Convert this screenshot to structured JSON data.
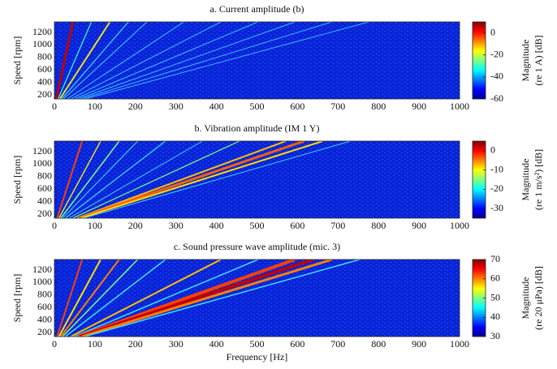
{
  "chart_data": [
    {
      "type": "heatmap",
      "title": "a. Current amplitude (b)",
      "ylabel": "Speed [rpm]",
      "xlim": [
        0,
        1000
      ],
      "xticks": [
        0,
        100,
        200,
        300,
        400,
        500,
        600,
        700,
        800,
        900,
        1000
      ],
      "ylim": [
        135,
        1370
      ],
      "yticks": [
        200,
        400,
        600,
        800,
        1000,
        1200
      ],
      "colorbar": {
        "clim": [
          -60,
          10
        ],
        "ticks": [
          0,
          -20,
          -40,
          -60
        ],
        "label": [
          "Magnitude",
          "(re 1 A) [dB]"
        ]
      }
    },
    {
      "type": "heatmap",
      "title": "b. Vibration amplitude (IM 1 Y)",
      "ylabel": "Speed [rpm]",
      "xlim": [
        0,
        1000
      ],
      "xticks": [
        0,
        100,
        200,
        300,
        400,
        500,
        600,
        700,
        800,
        900,
        1000
      ],
      "ylim": [
        135,
        1370
      ],
      "yticks": [
        200,
        400,
        600,
        800,
        1000,
        1200
      ],
      "colorbar": {
        "clim": [
          -35,
          5
        ],
        "ticks": [
          0,
          -10,
          -20,
          -30
        ],
        "label": [
          "Magnitude",
          "(re 1 m/s²) [dB]"
        ]
      }
    },
    {
      "type": "heatmap",
      "title": "c. Sound pressure wave amplitude (mic. 3)",
      "ylabel": "Speed [rpm]",
      "xlabel": "Frequency [Hz]",
      "xlim": [
        0,
        1000
      ],
      "xticks": [
        0,
        100,
        200,
        300,
        400,
        500,
        600,
        700,
        800,
        900,
        1000
      ],
      "ylim": [
        135,
        1370
      ],
      "yticks": [
        200,
        400,
        600,
        800,
        1000,
        1200
      ],
      "colorbar": {
        "clim": [
          30,
          70
        ],
        "ticks": [
          30,
          40,
          50,
          60,
          70
        ],
        "label": [
          "Magnitude",
          "(re 20 μPa) [dB]"
        ]
      }
    }
  ]
}
